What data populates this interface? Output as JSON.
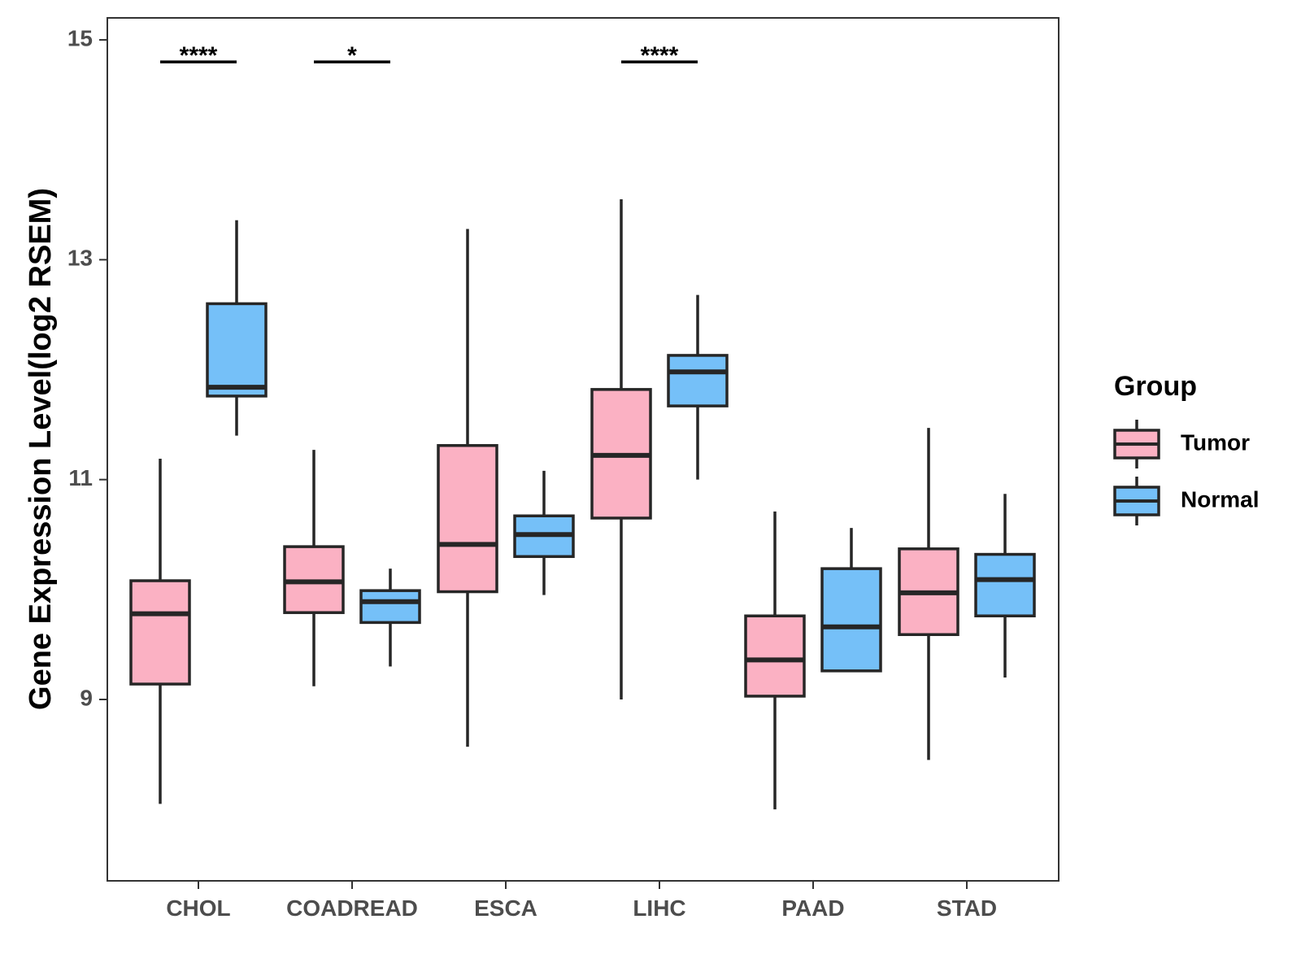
{
  "chart_data": {
    "type": "boxplot",
    "title": "",
    "xlabel": "",
    "ylabel": "Gene Expression Level(log2 RSEM)",
    "ylim": [
      7.35,
      15.2
    ],
    "yticks": [
      9,
      11,
      13,
      15
    ],
    "categories": [
      "CHOL",
      "COADREAD",
      "ESCA",
      "LIHC",
      "PAAD",
      "STAD"
    ],
    "legend": {
      "title": "Group",
      "position": "right"
    },
    "series": [
      {
        "name": "Tumor",
        "color": "#FBB1C3",
        "boxes": [
          {
            "category": "CHOL",
            "whisker_low": 8.05,
            "q1": 9.14,
            "median": 9.78,
            "q3": 10.08,
            "whisker_high": 11.19
          },
          {
            "category": "COADREAD",
            "whisker_low": 9.12,
            "q1": 9.79,
            "median": 10.07,
            "q3": 10.39,
            "whisker_high": 11.27
          },
          {
            "category": "ESCA",
            "whisker_low": 8.57,
            "q1": 9.98,
            "median": 10.41,
            "q3": 11.31,
            "whisker_high": 13.28
          },
          {
            "category": "LIHC",
            "whisker_low": 9.0,
            "q1": 10.65,
            "median": 11.22,
            "q3": 11.82,
            "whisker_high": 13.55
          },
          {
            "category": "PAAD",
            "whisker_low": 8.0,
            "q1": 9.03,
            "median": 9.36,
            "q3": 9.76,
            "whisker_high": 10.71
          },
          {
            "category": "STAD",
            "whisker_low": 8.45,
            "q1": 9.59,
            "median": 9.97,
            "q3": 10.37,
            "whisker_high": 11.47
          }
        ]
      },
      {
        "name": "Normal",
        "color": "#75C0F8",
        "boxes": [
          {
            "category": "CHOL",
            "whisker_low": 11.4,
            "q1": 11.76,
            "median": 11.84,
            "q3": 12.6,
            "whisker_high": 13.36
          },
          {
            "category": "COADREAD",
            "whisker_low": 9.3,
            "q1": 9.7,
            "median": 9.89,
            "q3": 9.99,
            "whisker_high": 10.19
          },
          {
            "category": "ESCA",
            "whisker_low": 9.95,
            "q1": 10.3,
            "median": 10.5,
            "q3": 10.67,
            "whisker_high": 11.08
          },
          {
            "category": "LIHC",
            "whisker_low": 11.0,
            "q1": 11.67,
            "median": 11.98,
            "q3": 12.13,
            "whisker_high": 12.68
          },
          {
            "category": "PAAD",
            "whisker_low": 9.26,
            "q1": 9.26,
            "median": 9.66,
            "q3": 10.19,
            "whisker_high": 10.56
          },
          {
            "category": "STAD",
            "whisker_low": 9.2,
            "q1": 9.76,
            "median": 10.09,
            "q3": 10.32,
            "whisker_high": 10.87
          }
        ]
      }
    ],
    "significance": [
      {
        "category": "CHOL",
        "label": "****",
        "y": 14.8
      },
      {
        "category": "COADREAD",
        "label": "*",
        "y": 14.8
      },
      {
        "category": "LIHC",
        "label": "****",
        "y": 14.8
      }
    ],
    "grid": false
  }
}
